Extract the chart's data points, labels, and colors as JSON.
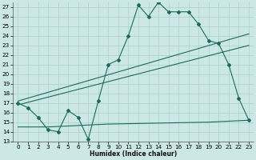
{
  "title": "",
  "xlabel": "Humidex (Indice chaleur)",
  "ylabel": "",
  "bg_color": "#cce8e4",
  "grid_color": "#b0d4d0",
  "line_color": "#1a6b5a",
  "xlim": [
    -0.5,
    23.5
  ],
  "ylim": [
    13,
    27.5
  ],
  "yticks": [
    13,
    14,
    15,
    16,
    17,
    18,
    19,
    20,
    21,
    22,
    23,
    24,
    25,
    26,
    27
  ],
  "xticks": [
    0,
    1,
    2,
    3,
    4,
    5,
    6,
    7,
    8,
    9,
    10,
    11,
    12,
    13,
    14,
    15,
    16,
    17,
    18,
    19,
    20,
    21,
    22,
    23
  ],
  "series1_x": [
    0,
    1,
    2,
    3,
    4,
    5,
    6,
    7,
    8,
    9,
    10,
    11,
    12,
    13,
    14,
    15,
    16,
    17,
    18,
    19,
    20,
    21,
    22,
    23
  ],
  "series1_y": [
    17.0,
    16.5,
    15.5,
    14.2,
    14.0,
    16.2,
    15.5,
    13.2,
    17.2,
    21.0,
    21.5,
    24.0,
    27.2,
    26.0,
    27.5,
    26.5,
    26.5,
    26.5,
    25.2,
    23.5,
    23.2,
    21.0,
    17.5,
    15.2
  ],
  "series2_x": [
    0,
    23
  ],
  "series2_y": [
    17.2,
    24.2
  ],
  "series3_x": [
    0,
    23
  ],
  "series3_y": [
    16.8,
    23.0
  ],
  "series4_x": [
    0,
    3,
    9,
    19,
    23
  ],
  "series4_y": [
    14.5,
    14.5,
    14.8,
    15.0,
    15.2
  ]
}
